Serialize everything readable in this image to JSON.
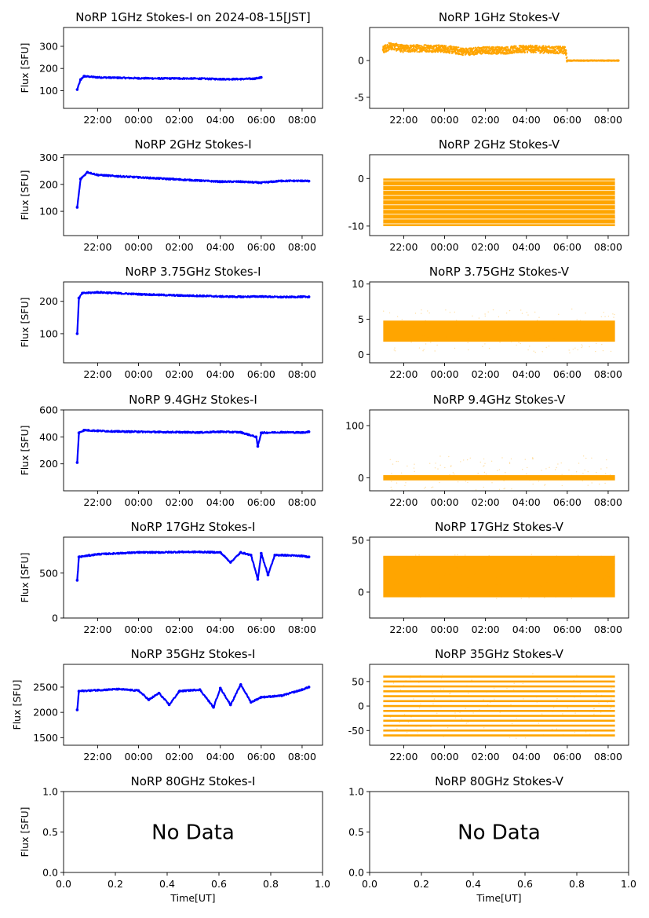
{
  "figure": {
    "x_axis_label": "Time[UT]",
    "no_data_text": "No Data"
  },
  "colors": {
    "stokes_i": "#0000ff",
    "stokes_v": "#ffa500",
    "axes": "#000000"
  },
  "chart_data": [
    {
      "type": "line",
      "title": "NoRP 1GHz Stokes-I on 2024-08-15[JST]",
      "ylabel": "Flux [SFU]",
      "ylim": [
        20,
        385
      ],
      "yticks": [
        100,
        200,
        300
      ],
      "x": [
        "21:00",
        "21:10",
        "21:20",
        "22:00",
        "23:00",
        "00:00",
        "01:00",
        "02:00",
        "03:00",
        "04:00",
        "05:00",
        "05:40",
        "05:55",
        "06:00"
      ],
      "values": [
        105,
        150,
        165,
        160,
        158,
        156,
        155,
        155,
        154,
        152,
        152,
        154,
        158,
        160
      ]
    },
    {
      "type": "scatter",
      "title": "NoRP 1GHz Stokes-V",
      "ylabel": "",
      "ylim": [
        -6.5,
        4.5
      ],
      "yticks": [
        -5,
        0
      ],
      "x": [
        "21:00",
        "21:20",
        "22:00",
        "23:00",
        "00:00",
        "01:00",
        "02:00",
        "03:00",
        "04:00",
        "05:00",
        "05:55",
        "06:00",
        "07:00",
        "08:00",
        "08:30"
      ],
      "values": [
        1.5,
        2.0,
        1.6,
        1.7,
        1.6,
        1.2,
        1.4,
        1.4,
        1.6,
        1.5,
        1.4,
        0,
        0,
        0,
        0
      ]
    },
    {
      "type": "line",
      "title": "NoRP 2GHz Stokes-I",
      "ylabel": "Flux [SFU]",
      "ylim": [
        10,
        310
      ],
      "yticks": [
        100,
        200,
        300
      ],
      "x": [
        "21:00",
        "21:10",
        "21:30",
        "22:00",
        "23:00",
        "00:00",
        "01:00",
        "02:00",
        "03:00",
        "04:00",
        "05:00",
        "06:00",
        "07:00",
        "08:00",
        "08:20"
      ],
      "values": [
        115,
        220,
        245,
        235,
        230,
        226,
        222,
        218,
        214,
        210,
        210,
        206,
        213,
        213,
        212
      ]
    },
    {
      "type": "scatter",
      "title": "NoRP 2GHz Stokes-V",
      "ylabel": "",
      "ylim": [
        -12,
        5
      ],
      "yticks": [
        -10,
        0
      ],
      "x": [
        "21:00",
        "08:20"
      ],
      "band_min": [
        -10,
        -10
      ],
      "band_max": [
        0,
        0
      ]
    },
    {
      "type": "line",
      "title": "NoRP 3.75GHz Stokes-I",
      "ylabel": "Flux [SFU]",
      "ylim": [
        10,
        260
      ],
      "yticks": [
        100,
        200
      ],
      "x": [
        "21:00",
        "21:05",
        "21:15",
        "22:00",
        "23:00",
        "00:00",
        "01:00",
        "02:00",
        "03:00",
        "04:00",
        "05:00",
        "06:00",
        "07:00",
        "08:00",
        "08:20"
      ],
      "values": [
        100,
        210,
        225,
        228,
        225,
        222,
        220,
        218,
        217,
        215,
        214,
        215,
        213,
        214,
        214
      ]
    },
    {
      "type": "scatter",
      "title": "NoRP 3.75GHz Stokes-V",
      "ylabel": "",
      "ylim": [
        -1.2,
        10.3
      ],
      "yticks": [
        0,
        5,
        10
      ],
      "x": [
        "21:00",
        "08:20"
      ],
      "band_min": [
        1.8,
        1.8
      ],
      "band_max": [
        4.8,
        4.8
      ]
    },
    {
      "type": "line",
      "title": "NoRP 9.4GHz Stokes-I",
      "ylabel": "Flux [SFU]",
      "ylim": [
        0,
        600
      ],
      "yticks": [
        200,
        400,
        600
      ],
      "x": [
        "21:00",
        "21:05",
        "21:20",
        "22:00",
        "23:00",
        "00:00",
        "01:00",
        "02:00",
        "03:00",
        "04:00",
        "05:00",
        "05:45",
        "05:50",
        "06:00",
        "07:00",
        "08:00",
        "08:20"
      ],
      "values": [
        210,
        430,
        450,
        445,
        440,
        438,
        436,
        435,
        433,
        438,
        434,
        400,
        330,
        430,
        435,
        432,
        438
      ]
    },
    {
      "type": "scatter",
      "title": "NoRP 9.4GHz Stokes-V",
      "ylabel": "",
      "ylim": [
        -25,
        130
      ],
      "yticks": [
        0,
        100
      ],
      "x": [
        "21:00",
        "08:20"
      ],
      "band_min": [
        -5,
        -5
      ],
      "band_max": [
        5,
        5
      ]
    },
    {
      "type": "line",
      "title": "NoRP 17GHz Stokes-I",
      "ylabel": "Flux [SFU]",
      "ylim": [
        0,
        900
      ],
      "yticks": [
        0,
        500
      ],
      "x": [
        "21:00",
        "21:05",
        "22:00",
        "23:00",
        "00:00",
        "01:00",
        "02:00",
        "03:00",
        "04:00",
        "04:30",
        "05:00",
        "05:30",
        "05:50",
        "06:00",
        "06:20",
        "06:40",
        "07:00",
        "08:00",
        "08:20"
      ],
      "values": [
        420,
        680,
        710,
        720,
        730,
        730,
        735,
        735,
        730,
        620,
        730,
        700,
        430,
        720,
        480,
        700,
        700,
        690,
        680
      ]
    },
    {
      "type": "scatter",
      "title": "NoRP 17GHz Stokes-V",
      "ylabel": "",
      "ylim": [
        -25,
        53
      ],
      "yticks": [
        0,
        50
      ],
      "x": [
        "21:00",
        "08:20"
      ],
      "band_min": [
        -5,
        -5
      ],
      "band_max": [
        35,
        35
      ]
    },
    {
      "type": "line",
      "title": "NoRP 35GHz Stokes-I",
      "ylabel": "Flux [SFU]",
      "ylim": [
        1350,
        2950
      ],
      "yticks": [
        1500,
        2000,
        2500
      ],
      "x": [
        "21:00",
        "21:05",
        "22:00",
        "23:00",
        "00:00",
        "00:30",
        "01:00",
        "01:30",
        "02:00",
        "03:00",
        "03:40",
        "04:00",
        "04:30",
        "05:00",
        "05:30",
        "06:00",
        "07:00",
        "08:00",
        "08:20"
      ],
      "values": [
        2050,
        2420,
        2440,
        2460,
        2430,
        2250,
        2380,
        2150,
        2420,
        2450,
        2100,
        2480,
        2150,
        2550,
        2200,
        2300,
        2330,
        2450,
        2500
      ]
    },
    {
      "type": "scatter",
      "title": "NoRP 35GHz Stokes-V",
      "ylabel": "",
      "ylim": [
        -80,
        85
      ],
      "yticks": [
        -50,
        0,
        50
      ],
      "x": [
        "21:00",
        "08:20"
      ],
      "levels": [
        -60,
        -50,
        -40,
        -30,
        -20,
        -10,
        0,
        10,
        20,
        30,
        40,
        50,
        60
      ]
    },
    {
      "type": "line",
      "title": "NoRP 80GHz Stokes-I",
      "ylabel": "Flux [SFU]",
      "xlim": [
        0,
        1
      ],
      "ylim": [
        0,
        1
      ],
      "xticks": [
        "0.0",
        "0.2",
        "0.4",
        "0.6",
        "0.8",
        "1.0"
      ],
      "yticks": [
        "0.0",
        "0.5",
        "1.0"
      ],
      "values": []
    },
    {
      "type": "line",
      "title": "NoRP 80GHz Stokes-V",
      "ylabel": "",
      "xlim": [
        0,
        1
      ],
      "ylim": [
        0,
        1
      ],
      "xticks": [
        "0.0",
        "0.2",
        "0.4",
        "0.6",
        "0.8",
        "1.0"
      ],
      "yticks": [
        "0.0",
        "0.5",
        "1.0"
      ],
      "values": []
    }
  ],
  "time_axis": {
    "xlim": [
      "20:20",
      "09:00"
    ],
    "ticks": [
      "22:00",
      "00:00",
      "02:00",
      "04:00",
      "06:00",
      "08:00"
    ]
  }
}
